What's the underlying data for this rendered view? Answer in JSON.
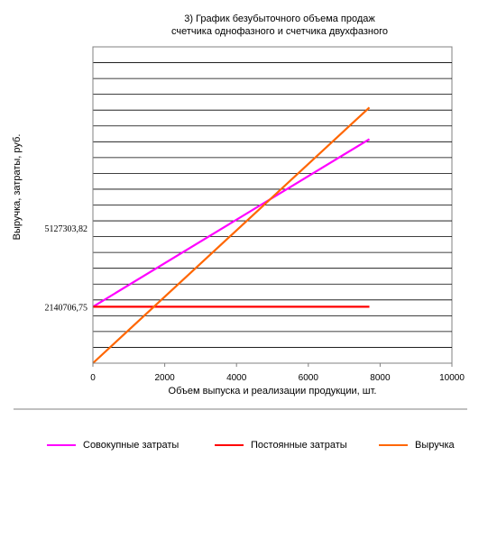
{
  "chart_data": {
    "type": "line",
    "title_line1": "3) График безубыточного объема продаж",
    "title_line2": "счетчика однофазного и счетчика двухфазного",
    "xlabel": "Объем выпуска и реализации продукции, шт.",
    "ylabel": "Выручка, затраты, руб.",
    "xlim": [
      0,
      10000
    ],
    "xticks": [
      0,
      2000,
      4000,
      6000,
      8000,
      10000
    ],
    "xtick_labels": [
      "0",
      "2000",
      "4000",
      "6000",
      "8000",
      "10000"
    ],
    "ylim": [
      0,
      12000000
    ],
    "ytick_values": [
      5127303.82,
      2140706.75
    ],
    "ytick_labels": [
      "5127303,82",
      "2140706,75"
    ],
    "grid": "horizontal",
    "legend_position": "bottom",
    "series": [
      {
        "name": "Совокупные затраты",
        "color": "#ff00ff",
        "x": [
          0,
          7700
        ],
        "y": [
          2140706.75,
          8500000
        ]
      },
      {
        "name": "Постоянные затраты",
        "color": "#ff0000",
        "x": [
          0,
          7700
        ],
        "y": [
          2140706.75,
          2140706.75
        ]
      },
      {
        "name": "Выручка",
        "color": "#ff6600",
        "x": [
          0,
          7700
        ],
        "y": [
          0,
          9700000
        ]
      }
    ]
  }
}
